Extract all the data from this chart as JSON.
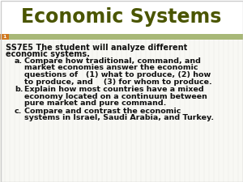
{
  "title": "Economic Systems",
  "title_color": "#4a5500",
  "title_bg": "#ffffff",
  "slide_bg": "#f8f8f4",
  "stripe_color": "#a8b878",
  "slide_number": "1",
  "num_box_color": "#d07820",
  "border_color": "#cccccc",
  "text_color": "#111111",
  "intro_line1": "SS7E5 The student will analyze different",
  "intro_line2": "economic systems.",
  "a_line1": "Compare how traditional, command, and",
  "a_line2": "market economies answer the economic",
  "a_line3": "questions of   (1) what to produce, (2) how",
  "a_line4": "to produce, and    (3) for whom to produce.",
  "b_line1": "Explain how most countries have a mixed",
  "b_line2": "economy located on a continuum between",
  "b_line3": "pure market and pure command.",
  "c_line1": "Compare and contrast the economic",
  "c_line2": "systems in Israel, Saudi Arabia, and Turkey."
}
